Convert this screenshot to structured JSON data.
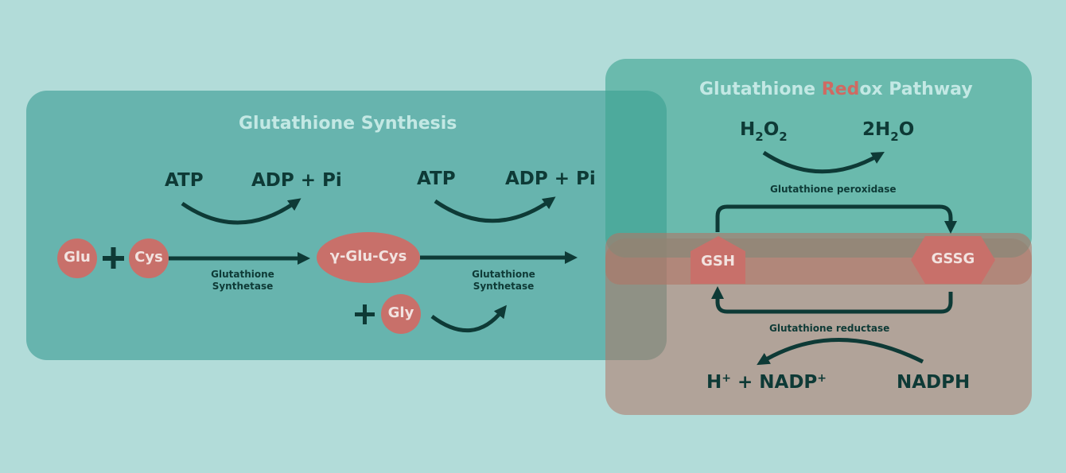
{
  "colors": {
    "background": "#b2dcd9",
    "synthesis_panel": "#4aa59d",
    "redox_panel": "#3ea592",
    "recycle_band": "#b07565",
    "node_fill": "#c8706a",
    "arrow": "#0e3a36",
    "title_text": "#c3e8e4",
    "red_highlight": "#cf6a62"
  },
  "synthesis": {
    "title": "Glutathione Synthesis",
    "step1": {
      "cofactor_in": "ATP",
      "cofactor_out": "ADP + Pi",
      "enzyme_line1": "Glutathione",
      "enzyme_line2": "Synthetase"
    },
    "step2": {
      "cofactor_in": "ATP",
      "cofactor_out": "ADP + Pi",
      "enzyme_line1": "Glutathione",
      "enzyme_line2": "Synthetase"
    },
    "plus": "+",
    "nodes": {
      "glu": "Glu",
      "cys": "Cys",
      "gamma_glu_cys": "γ-Glu-Cys",
      "gly": "Gly"
    }
  },
  "redox": {
    "title_prefix": "Glutathione ",
    "title_highlight": "Red",
    "title_suffix": "ox Pathway",
    "h2o2": {
      "main": "H",
      "sub1": "2",
      "mid": "O",
      "sub2": "2"
    },
    "water": {
      "pre": "2H",
      "sub": "2",
      "post": "O"
    },
    "peroxidase": "Glutathione peroxidase",
    "reductase": "Glutathione reductase",
    "gsh": "GSH",
    "gssg": "GSSG",
    "hplus_nadp": {
      "h": "H",
      "sup1": "+",
      "mid": " + NADP",
      "sup2": "+"
    },
    "nadph": "NADPH"
  }
}
